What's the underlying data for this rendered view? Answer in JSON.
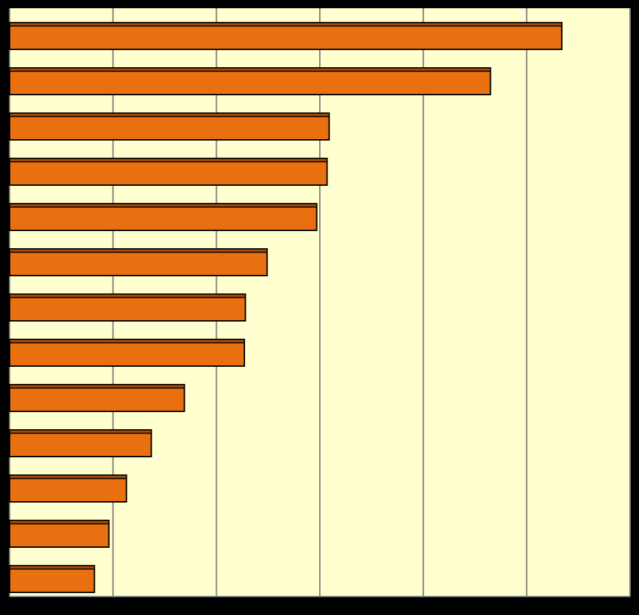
{
  "chart_data": {
    "type": "barh",
    "categories": [
      null,
      null,
      null,
      null,
      null,
      null,
      null,
      null,
      null,
      null,
      null,
      null,
      null
    ],
    "values": [
      5.34,
      4.65,
      3.09,
      3.07,
      2.97,
      2.49,
      2.28,
      2.27,
      1.69,
      1.37,
      1.13,
      0.96,
      0.82
    ],
    "color": "#e87010",
    "xlim": [
      0,
      6
    ],
    "xticks": [
      0,
      1,
      2,
      3,
      4,
      5,
      6
    ],
    "grid": true
  }
}
